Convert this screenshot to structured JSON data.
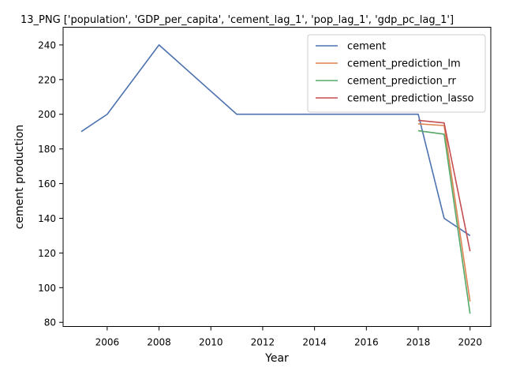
{
  "chart_data": {
    "type": "line",
    "title": "13_PNG ['population', 'GDP_per_capita', 'cement_lag_1', 'pop_lag_1', 'gdp_pc_lag_1']",
    "xlabel": "Year",
    "ylabel": "cement production",
    "xlim": [
      2004.3,
      2020.8
    ],
    "ylim": [
      77.6,
      250.2
    ],
    "x_ticks": [
      2006,
      2008,
      2010,
      2012,
      2014,
      2016,
      2018,
      2020
    ],
    "y_ticks": [
      80,
      100,
      120,
      140,
      160,
      180,
      200,
      220,
      240
    ],
    "grid": false,
    "legend_position": "top-right",
    "series": [
      {
        "name": "cement",
        "color": "#4c72b0",
        "x": [
          2005,
          2006,
          2008,
          2011,
          2018,
          2019,
          2020
        ],
        "y": [
          190,
          200,
          240,
          200,
          200,
          140,
          130
        ]
      },
      {
        "name": "cement_prediction_lm",
        "color": "#dd8452",
        "x": [
          2018,
          2019,
          2020
        ],
        "y": [
          194.5,
          193.5,
          92
        ]
      },
      {
        "name": "cement_prediction_rr",
        "color": "#55a868",
        "x": [
          2018,
          2019,
          2020
        ],
        "y": [
          190.5,
          188.5,
          85
        ]
      },
      {
        "name": "cement_prediction_lasso",
        "color": "#c44e52",
        "x": [
          2018,
          2019,
          2020
        ],
        "y": [
          196.5,
          195,
          121
        ]
      }
    ]
  }
}
